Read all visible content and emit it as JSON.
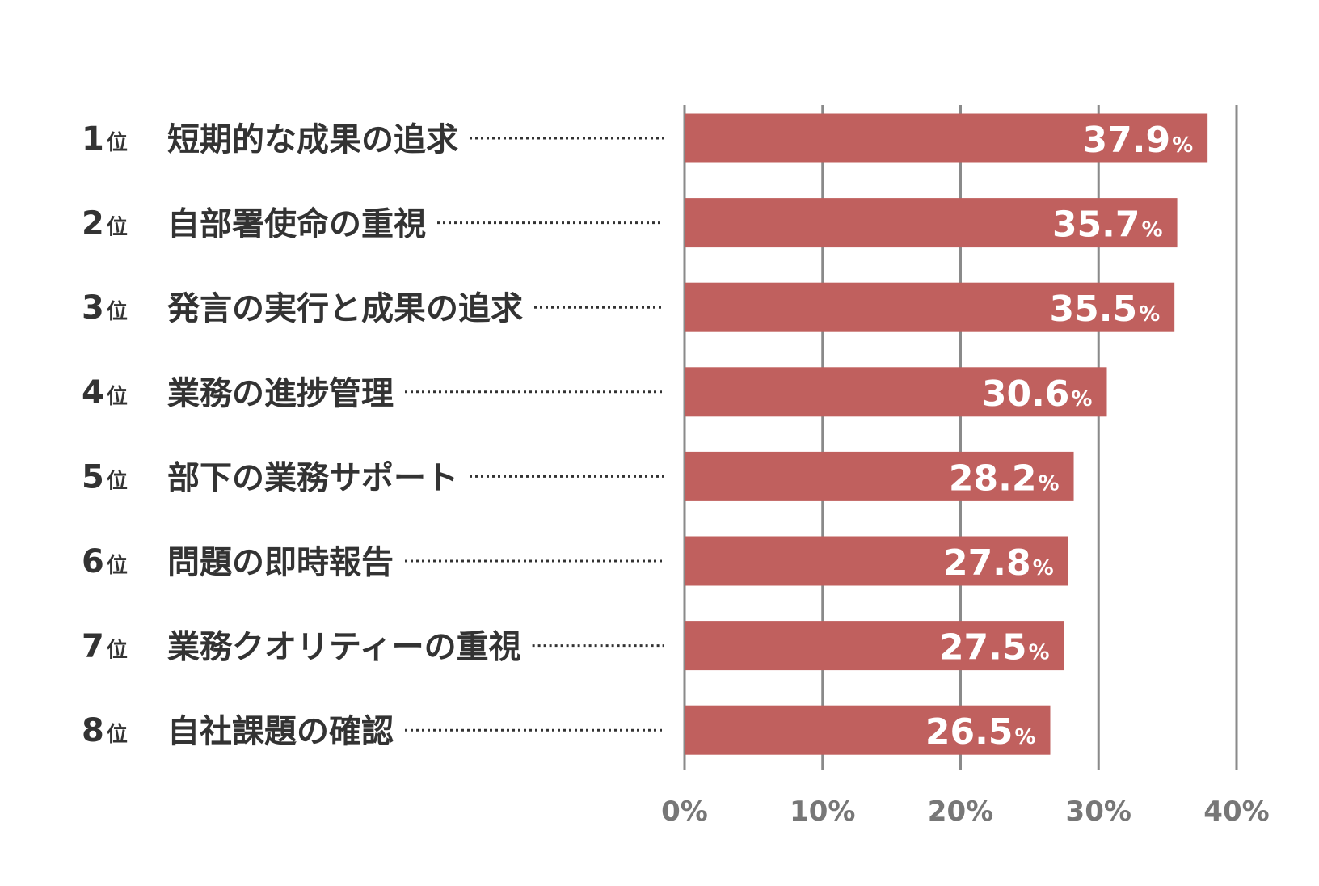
{
  "chart_data": {
    "type": "bar",
    "orientation": "horizontal",
    "title": "",
    "xlabel": "",
    "ylabel": "",
    "xlim": [
      0,
      40
    ],
    "grid": true,
    "rank_suffix": "位",
    "value_suffix": "%",
    "categories": [
      {
        "rank": "1",
        "label": "短期的な成果の追求",
        "value": 37.9,
        "value_text": "37.9"
      },
      {
        "rank": "2",
        "label": "自部署使命の重視",
        "value": 35.7,
        "value_text": "35.7"
      },
      {
        "rank": "3",
        "label": "発言の実行と成果の追求",
        "value": 35.5,
        "value_text": "35.5"
      },
      {
        "rank": "4",
        "label": "業務の進捗管理",
        "value": 30.6,
        "value_text": "30.6"
      },
      {
        "rank": "5",
        "label": "部下の業務サポート",
        "value": 28.2,
        "value_text": "28.2"
      },
      {
        "rank": "6",
        "label": "問題の即時報告",
        "value": 27.8,
        "value_text": "27.8"
      },
      {
        "rank": "7",
        "label": "業務クオリティーの重視",
        "value": 27.5,
        "value_text": "27.5"
      },
      {
        "rank": "8",
        "label": "自社課題の確認",
        "value": 26.5,
        "value_text": "26.5"
      }
    ],
    "ticks": [
      {
        "value": 0,
        "label": "0%"
      },
      {
        "value": 10,
        "label": "10%"
      },
      {
        "value": 20,
        "label": "20%"
      },
      {
        "value": 30,
        "label": "30%"
      },
      {
        "value": 40,
        "label": "40%"
      }
    ],
    "colors": {
      "bar": "#c0605e",
      "grid": "#8a8a8a",
      "text": "#333333",
      "tick": "#777777"
    }
  }
}
